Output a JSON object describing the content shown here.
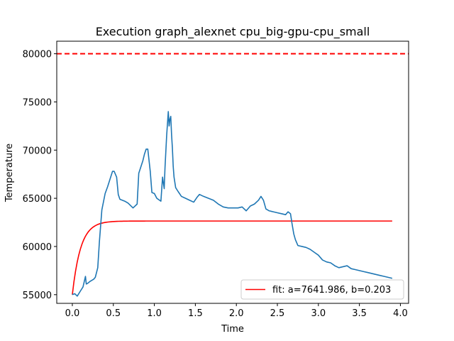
{
  "chart_data": {
    "type": "line",
    "title": "Execution graph_alexnet cpu_big-gpu-cpu_small",
    "xlabel": "Time",
    "ylabel": "Temperature",
    "xlim": [
      -0.19,
      4.1
    ],
    "ylim": [
      54100,
      81300
    ],
    "xticks": [
      0.0,
      0.5,
      1.0,
      1.5,
      2.0,
      2.5,
      3.0,
      3.5,
      4.0
    ],
    "xtick_labels": [
      "0.0",
      "0.5",
      "1.0",
      "1.5",
      "2.0",
      "2.5",
      "3.0",
      "3.5",
      "4.0"
    ],
    "yticks": [
      55000,
      60000,
      65000,
      70000,
      75000,
      80000
    ],
    "ytick_labels": [
      "55000",
      "60000",
      "65000",
      "70000",
      "75000",
      "80000"
    ],
    "grid": false,
    "legend_position": "lower-right",
    "threshold": {
      "y": 80000,
      "color": "#ff0000",
      "style": "dashed"
    },
    "series": [
      {
        "name": "",
        "color": "#1f77b4",
        "x": [
          0.0,
          0.03,
          0.06,
          0.1,
          0.13,
          0.16,
          0.17,
          0.19,
          0.22,
          0.26,
          0.28,
          0.31,
          0.33,
          0.36,
          0.4,
          0.43,
          0.46,
          0.49,
          0.51,
          0.54,
          0.56,
          0.58,
          0.64,
          0.68,
          0.74,
          0.79,
          0.81,
          0.86,
          0.88,
          0.9,
          0.92,
          0.95,
          0.97,
          1.0,
          1.03,
          1.08,
          1.1,
          1.12,
          1.13,
          1.15,
          1.17,
          1.18,
          1.19,
          1.2,
          1.21,
          1.22,
          1.23,
          1.24,
          1.26,
          1.29,
          1.33,
          1.38,
          1.43,
          1.48,
          1.52,
          1.55,
          1.6,
          1.66,
          1.72,
          1.78,
          1.84,
          1.9,
          1.96,
          2.02,
          2.07,
          2.12,
          2.17,
          2.22,
          2.27,
          2.3,
          2.33,
          2.36,
          2.4,
          2.45,
          2.5,
          2.55,
          2.6,
          2.63,
          2.66,
          2.68,
          2.7,
          2.72,
          2.75,
          2.8,
          2.85,
          2.9,
          2.95,
          3.0,
          3.05,
          3.1,
          3.15,
          3.2,
          3.25,
          3.3,
          3.35,
          3.4,
          3.45,
          3.5,
          3.55,
          3.6,
          3.65,
          3.7,
          3.75,
          3.8,
          3.85,
          3.9
        ],
        "y": [
          55000,
          55100,
          54850,
          55400,
          55800,
          56900,
          56100,
          56200,
          56400,
          56600,
          56800,
          57800,
          60500,
          63800,
          65500,
          66200,
          67000,
          67800,
          67800,
          67200,
          65400,
          64900,
          64700,
          64500,
          64000,
          64400,
          67600,
          68900,
          69600,
          70100,
          70100,
          67800,
          65600,
          65500,
          65000,
          64700,
          67200,
          66000,
          68200,
          71500,
          74000,
          72500,
          73200,
          73500,
          71600,
          70200,
          68300,
          67200,
          66100,
          65700,
          65200,
          65000,
          64800,
          64600,
          65100,
          65400,
          65200,
          65000,
          64800,
          64400,
          64100,
          64000,
          64000,
          64000,
          64100,
          63700,
          64200,
          64400,
          64800,
          65200,
          64800,
          63900,
          63700,
          63600,
          63500,
          63400,
          63300,
          63600,
          63400,
          62300,
          61300,
          60700,
          60100,
          60000,
          59900,
          59700,
          59400,
          59100,
          58600,
          58400,
          58300,
          58000,
          57800,
          57900,
          58000,
          57700,
          57600,
          57500,
          57400,
          57300,
          57200,
          57100,
          57000,
          56900,
          56800,
          56700
        ]
      },
      {
        "name": "fit: a=7641.986, b=0.203",
        "color": "#ff0000",
        "model": "exponential-approach",
        "base": 55000,
        "a": 7641.986,
        "b": 0.203,
        "x_range": [
          0.0,
          3.9
        ]
      }
    ]
  }
}
